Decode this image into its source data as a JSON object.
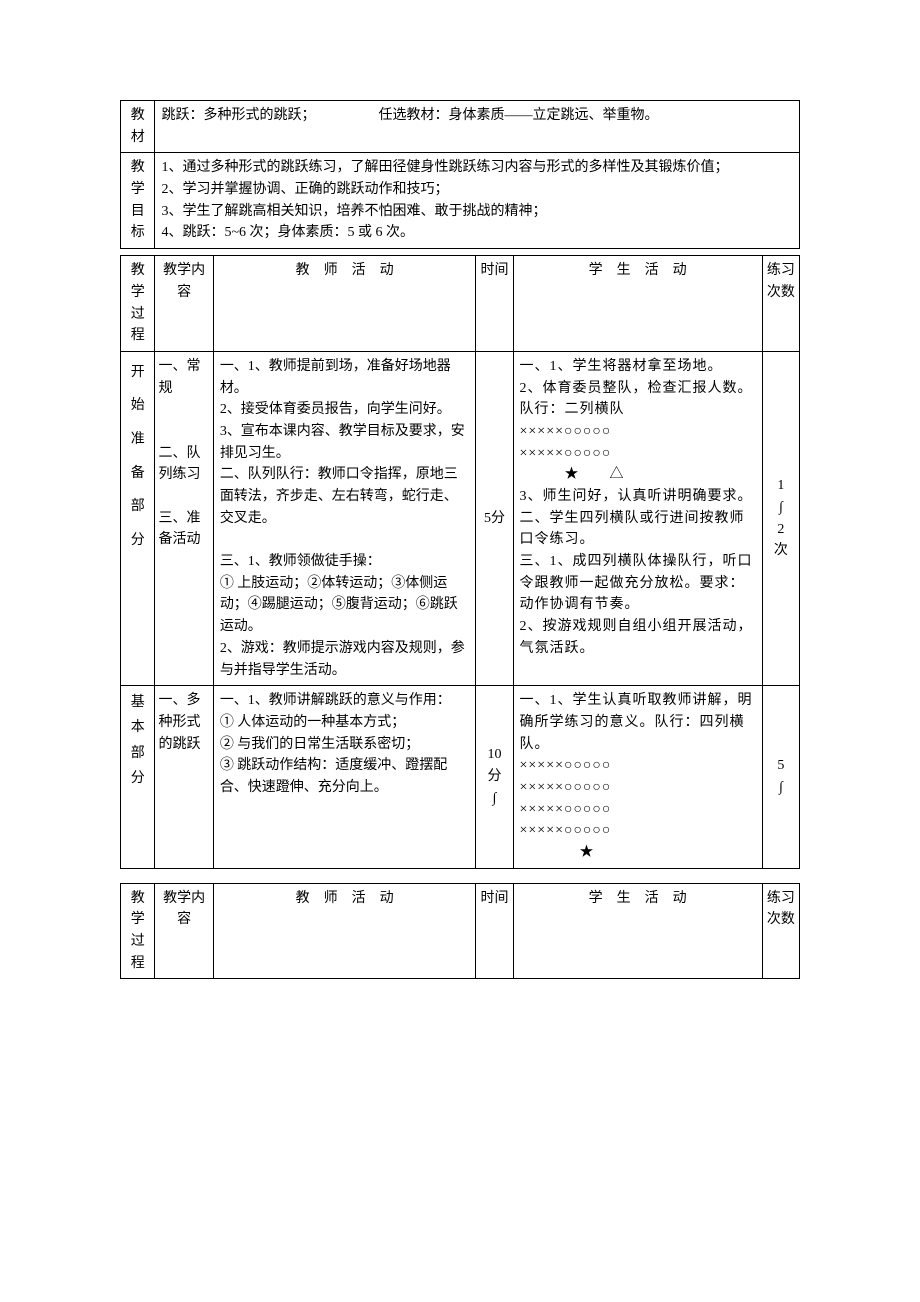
{
  "header1": {
    "label": "教材",
    "content": "跳跃：多种形式的跳跃；　　　　　任选教材：身体素质——立定跳远、举重物。"
  },
  "header2": {
    "label": "教学目标",
    "lines": [
      "1、通过多种形式的跳跃练习，了解田径健身性跳跃练习内容与形式的多样性及其锻炼价值；",
      "2、学习并掌握协调、正确的跳跃动作和技巧；",
      "3、学生了解跳高相关知识，培养不怕困难、敢于挑战的精神；",
      "4、跳跃：5~6 次；身体素质：5 或 6 次。"
    ]
  },
  "columns": {
    "process": "教学过程",
    "content": "教学内容",
    "teacher": "教　师　活　动",
    "time": "时间",
    "student": "学　生　活　动",
    "count": "练习次数"
  },
  "row_prep": {
    "process": "开始准备部分",
    "content_items": [
      "一、常规",
      "",
      "",
      "二、队列练习",
      "",
      "三、准备活动"
    ],
    "teacher": "一、1、教师提前到场，准备好场地器材。\n2、接受体育委员报告，向学生问好。\n3、宣布本课内容、教学目标及要求，安排见习生。\n二、队列队行：教师口令指挥，原地三面转法，齐步走、左右转弯，蛇行走、交叉走。\n\n三、1、教师领做徒手操：\n① 上肢运动；②体转运动；③体侧运动；④踢腿运动；⑤腹背运动；⑥跳跃运动。\n2、游戏：教师提示游戏内容及规则，参与并指导学生活动。",
    "time": "5分",
    "student_lines": [
      "一、1、学生将器材拿至场地。",
      "2、体育委员整队，检查汇报人数。队行：二列横队",
      "×××××○○○○○",
      "×××××○○○○○",
      "　　　★　　△",
      "3、师生问好，认真听讲明确要求。",
      "二、学生四列横队或行进间按教师口令练习。",
      "三、1、成四列横队体操队行，听口令跟教师一起做充分放松。要求：动作协调有节奏。",
      "2、按游戏规则自组小组开展活动，气氛活跃。"
    ],
    "count": "1\n∫\n2\n次"
  },
  "row_basic": {
    "process": "基本部分",
    "content": "一、多种形式的跳跃",
    "teacher": "一、1、教师讲解跳跃的意义与作用：\n① 人体运动的一种基本方式；\n② 与我们的日常生活联系密切；\n③ 跳跃动作结构：适度缓冲、蹬摆配合、快速蹬伸、充分向上。",
    "time": "10\n分\n∫",
    "student_lines": [
      "一、1、学生认真听取教师讲解，明确所学练习的意义。队行：四列横队。",
      "×××××○○○○○",
      "×××××○○○○○",
      "×××××○○○○○",
      "×××××○○○○○",
      "　　　　★"
    ],
    "count": "5\n∫"
  }
}
